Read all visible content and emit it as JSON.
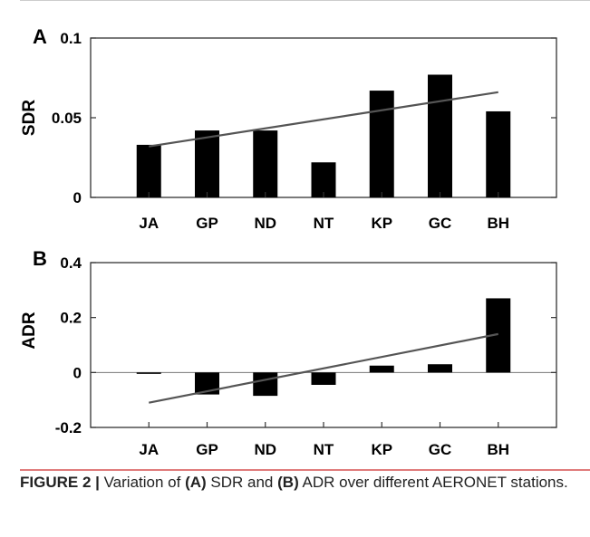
{
  "caption": {
    "prefix": "FIGURE 2 | ",
    "t1": "Variation of ",
    "b1": "(A)",
    "t2": " SDR and ",
    "b2": "(B)",
    "t3": " ADR over different AERONET stations."
  },
  "colors": {
    "bar": "#000000",
    "trend": "#555555",
    "zero_line": "#777777",
    "caption_rule": "#e07b7b"
  },
  "chart_data": [
    {
      "type": "bar",
      "panel_label": "A",
      "ylabel": "SDR",
      "categories": [
        "JA",
        "GP",
        "ND",
        "NT",
        "KP",
        "GC",
        "BH"
      ],
      "values": [
        0.033,
        0.042,
        0.042,
        0.022,
        0.067,
        0.077,
        0.054
      ],
      "ylim": [
        0,
        0.1
      ],
      "yticks": [
        0,
        0.05,
        0.1
      ],
      "ytick_labels": [
        "0",
        "0.05",
        "0.1"
      ],
      "trendline": {
        "start": 0.032,
        "end": 0.066
      },
      "grid": false
    },
    {
      "type": "bar",
      "panel_label": "B",
      "ylabel": "ADR",
      "categories": [
        "JA",
        "GP",
        "ND",
        "NT",
        "KP",
        "GC",
        "BH"
      ],
      "values": [
        -0.005,
        -0.08,
        -0.085,
        -0.045,
        0.025,
        0.03,
        0.27
      ],
      "ylim": [
        -0.2,
        0.4
      ],
      "yticks": [
        -0.2,
        0,
        0.2,
        0.4
      ],
      "ytick_labels": [
        "-0.2",
        "0",
        "0.2",
        "0.4"
      ],
      "trendline": {
        "start": -0.11,
        "end": 0.14
      },
      "zero_line": true,
      "grid": false
    }
  ]
}
